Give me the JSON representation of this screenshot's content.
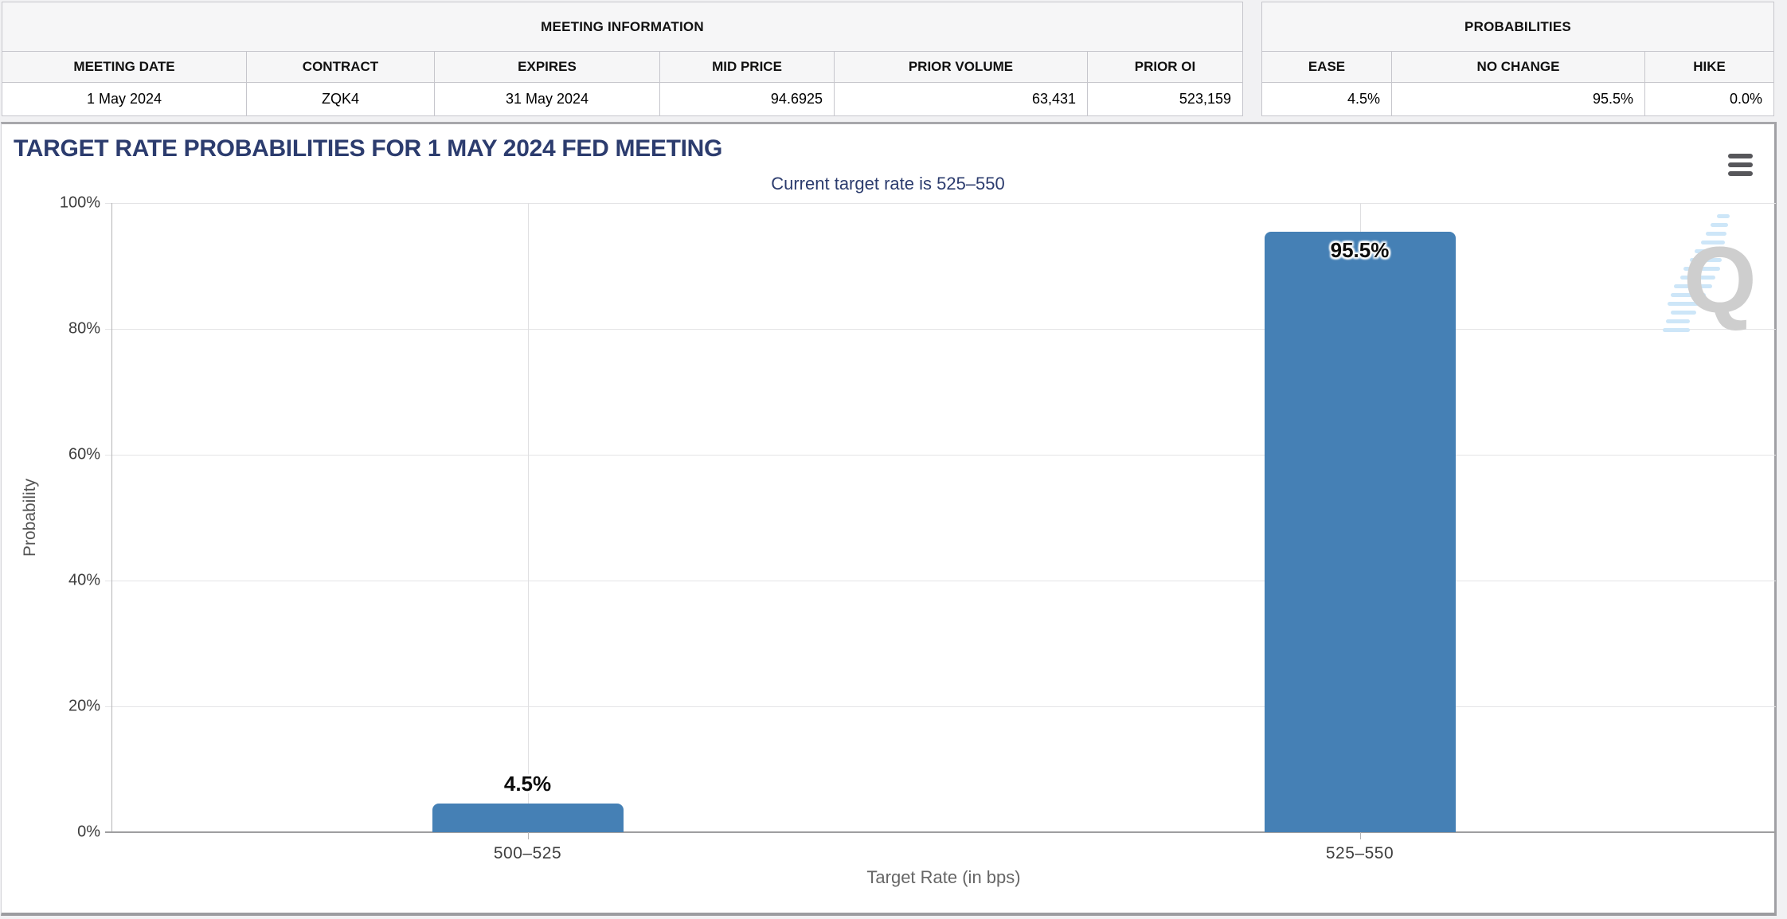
{
  "meeting_information": {
    "title": "MEETING INFORMATION",
    "columns": [
      "MEETING DATE",
      "CONTRACT",
      "EXPIRES",
      "MID PRICE",
      "PRIOR VOLUME",
      "PRIOR OI"
    ],
    "row": {
      "meeting_date": "1 May 2024",
      "contract": "ZQK4",
      "expires": "31 May 2024",
      "mid_price": "94.6925",
      "prior_volume": "63,431",
      "prior_oi": "523,159"
    }
  },
  "probabilities": {
    "title": "PROBABILITIES",
    "columns": [
      "EASE",
      "NO CHANGE",
      "HIKE"
    ],
    "row": {
      "ease": "4.5%",
      "no_change": "95.5%",
      "hike": "0.0%"
    }
  },
  "chart_data": {
    "type": "bar",
    "title": "TARGET RATE PROBABILITIES FOR 1 MAY 2024 FED MEETING",
    "subtitle": "Current target rate is 525–550",
    "categories": [
      "500–525",
      "525–550"
    ],
    "values": [
      4.5,
      95.5
    ],
    "value_labels": [
      "4.5%",
      "95.5%"
    ],
    "xlabel": "Target Rate (in bps)",
    "ylabel": "Probability",
    "ylim": [
      0,
      100
    ],
    "yticks": [
      "0%",
      "20%",
      "40%",
      "60%",
      "80%",
      "100%"
    ],
    "grid": true,
    "legend_position": "none",
    "bar_color": "#4580b5",
    "title_color": "#2c3c6e"
  },
  "watermark": {
    "letter": "Q"
  },
  "icons": {
    "chart_menu": "hamburger-menu-icon"
  }
}
